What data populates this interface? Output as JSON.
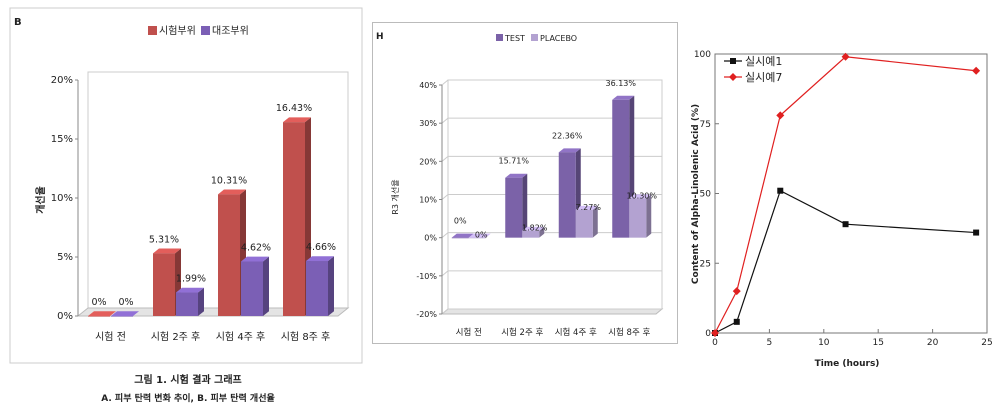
{
  "chart_data": [
    {
      "type": "bar",
      "panel_label": "B",
      "categories": [
        "시험 전",
        "시험 2주 후",
        "시험 4주 후",
        "시험 8주 후"
      ],
      "series": [
        {
          "name": "시험부위",
          "values": [
            0,
            5.31,
            10.31,
            16.43
          ],
          "labels": [
            "0%",
            "5.31%",
            "10.31%",
            "16.43%"
          ],
          "color": "#c0504d"
        },
        {
          "name": "대조부위",
          "values": [
            0,
            1.99,
            4.62,
            4.66
          ],
          "labels": [
            "0%",
            "1.99%",
            "4.62%",
            "4.66%"
          ],
          "color": "#7b5fb5"
        }
      ],
      "ylabel": "개선율",
      "ylim": [
        0,
        20
      ],
      "yticks": [
        "0%",
        "5%",
        "10%",
        "15%",
        "20%"
      ],
      "legend": "top-center",
      "caption_line1": "그림 1. 시험 결과 그래프",
      "caption_line2": "A. 피부 탄력 변화 추이, B. 피부 탄력 개선율"
    },
    {
      "type": "bar",
      "panel_label": "H",
      "categories": [
        "시험 전",
        "시험 2주 후",
        "시험 4주 후",
        "시험 8주 후"
      ],
      "series": [
        {
          "name": "TEST",
          "values": [
            0,
            15.71,
            22.36,
            36.13
          ],
          "labels": [
            "0%",
            "15.71%",
            "22.36%",
            "36.13%"
          ],
          "color": "#7b62a8"
        },
        {
          "name": "PLACEBO",
          "values": [
            0,
            1.82,
            7.27,
            10.3
          ],
          "labels": [
            "0%",
            "1.82%",
            "7.27%",
            "10.30%"
          ],
          "color": "#b3a2d1"
        }
      ],
      "ylabel": "R3 개선율",
      "ylim": [
        -20,
        40
      ],
      "yticks": [
        "-20%",
        "-10%",
        "0%",
        "10%",
        "20%",
        "30%",
        "40%"
      ],
      "legend": "top-center"
    },
    {
      "type": "line",
      "x": [
        0,
        2,
        6,
        12,
        24
      ],
      "series": [
        {
          "name": "실시예1",
          "values": [
            0,
            4,
            51,
            39,
            36
          ],
          "color": "#111111",
          "marker": "square"
        },
        {
          "name": "실시예7",
          "values": [
            0,
            15,
            78,
            99,
            94
          ],
          "color": "#e02020",
          "marker": "diamond"
        }
      ],
      "xlabel": "Time (hours)",
      "ylabel": "Content of Alpha-Linolenic Acid (%)",
      "xlim": [
        0,
        25
      ],
      "ylim": [
        0,
        100
      ],
      "xticks": [
        "0",
        "5",
        "10",
        "15",
        "20",
        "25"
      ],
      "yticks": [
        "0",
        "25",
        "50",
        "75",
        "100"
      ],
      "legend": "top-left"
    }
  ]
}
